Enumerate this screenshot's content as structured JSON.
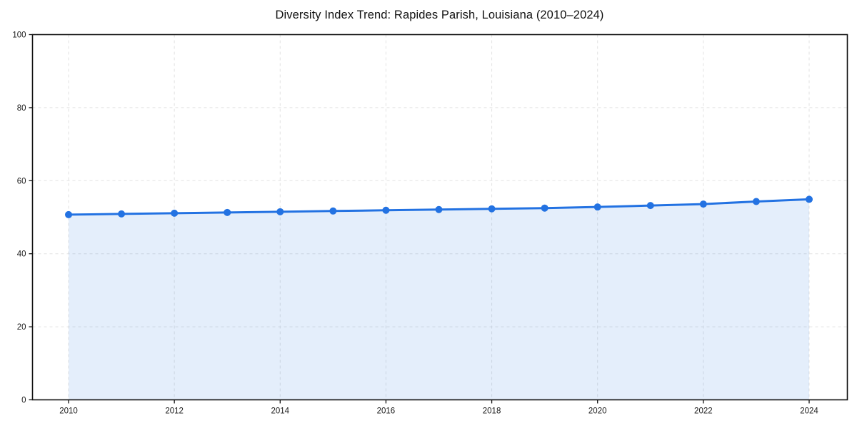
{
  "page": {
    "background_color": "#ffffff"
  },
  "chart_data": {
    "type": "area",
    "title": "Diversity Index Trend: Rapides Parish, Louisiana (2010–2024)",
    "x": [
      2010,
      2011,
      2012,
      2013,
      2014,
      2015,
      2016,
      2017,
      2018,
      2019,
      2020,
      2021,
      2022,
      2023,
      2024
    ],
    "series": [
      {
        "name": "Diversity Index",
        "values": [
          50.7,
          50.9,
          51.1,
          51.3,
          51.5,
          51.7,
          51.9,
          52.1,
          52.3,
          52.5,
          52.8,
          53.2,
          53.6,
          54.3,
          54.9
        ]
      }
    ],
    "xlabel": "",
    "ylabel": "",
    "ylim": [
      0,
      100
    ],
    "yticks": [
      0,
      20,
      40,
      60,
      80,
      100
    ],
    "xticks": [
      2010,
      2012,
      2014,
      2016,
      2018,
      2020,
      2022,
      2024
    ],
    "grid": "both-axes-dashed",
    "legend": "none",
    "marker": "circle",
    "line_color": "#2372e2",
    "fill_color": "#2372e2",
    "fill_opacity": 0.12,
    "grid_color": "#e2e2e2",
    "axis_color": "#111111",
    "tick_label_color": "#1a1a1a"
  }
}
